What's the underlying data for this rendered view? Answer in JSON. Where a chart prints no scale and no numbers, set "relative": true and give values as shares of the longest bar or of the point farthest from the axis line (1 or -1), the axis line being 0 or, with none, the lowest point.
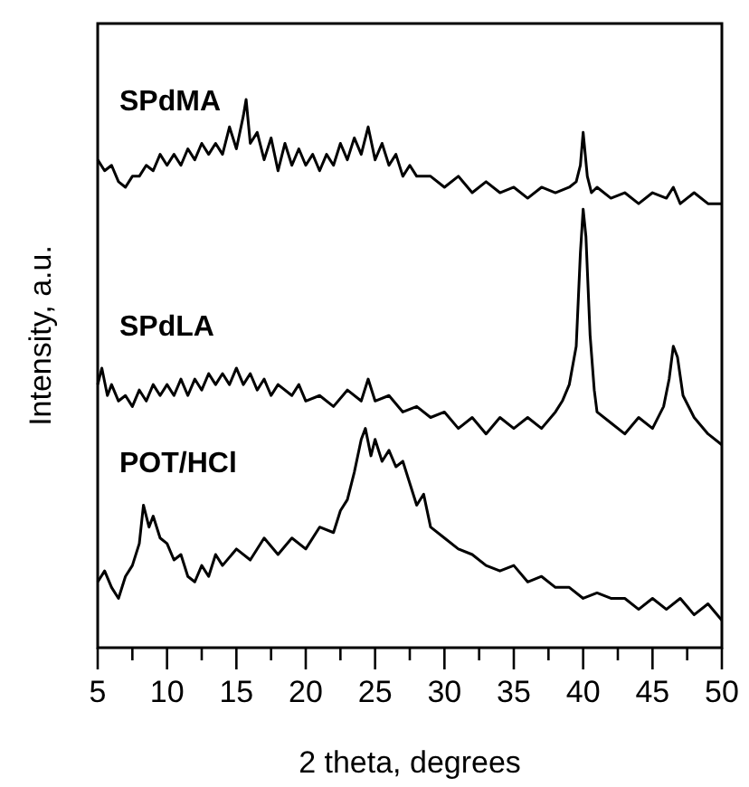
{
  "chart_data": {
    "type": "line",
    "relative": true,
    "xlabel": "2 theta, degrees",
    "ylabel": "Intensity, a.u.",
    "xlim": [
      5,
      50
    ],
    "xticks": [
      5,
      {
        "value": 7.5,
        "label": null
      },
      10,
      {
        "value": 12.5,
        "label": null
      },
      15,
      {
        "value": 17.5,
        "label": null
      },
      20,
      {
        "value": 22.5,
        "label": null
      },
      25,
      {
        "value": 27.5,
        "label": null
      },
      30,
      {
        "value": 32.5,
        "label": null
      },
      35,
      {
        "value": 37.5,
        "label": null
      },
      40,
      {
        "value": 42.5,
        "label": null
      },
      45,
      {
        "value": 47.5,
        "label": null
      },
      50
    ],
    "series": [
      {
        "name": "SPdMA",
        "color": "#000000",
        "x": [
          5,
          5.5,
          6,
          6.5,
          7,
          7.5,
          8,
          8.5,
          9,
          9.5,
          10,
          10.5,
          11,
          11.5,
          12,
          12.5,
          13,
          13.5,
          14,
          14.5,
          15,
          15.5,
          15.7,
          16,
          16.5,
          17,
          17.5,
          18,
          18.5,
          19,
          19.5,
          20,
          20.5,
          21,
          21.5,
          22,
          22.5,
          23,
          23.5,
          24,
          24.5,
          25,
          25.5,
          26,
          26.5,
          27,
          27.5,
          28,
          29,
          30,
          31,
          32,
          33,
          34,
          35,
          36,
          37,
          38,
          39,
          39.5,
          39.8,
          40,
          40.3,
          40.6,
          41,
          42,
          43,
          44,
          45,
          46,
          46.5,
          47,
          48,
          49,
          50
        ],
        "values": [
          0.89,
          0.87,
          0.88,
          0.85,
          0.84,
          0.86,
          0.86,
          0.88,
          0.87,
          0.9,
          0.88,
          0.9,
          0.88,
          0.91,
          0.89,
          0.92,
          0.9,
          0.92,
          0.9,
          0.95,
          0.91,
          0.97,
          1,
          0.92,
          0.94,
          0.89,
          0.93,
          0.87,
          0.92,
          0.88,
          0.91,
          0.88,
          0.9,
          0.87,
          0.9,
          0.88,
          0.92,
          0.89,
          0.93,
          0.9,
          0.95,
          0.89,
          0.92,
          0.88,
          0.9,
          0.86,
          0.88,
          0.86,
          0.86,
          0.84,
          0.86,
          0.83,
          0.85,
          0.83,
          0.84,
          0.82,
          0.84,
          0.83,
          0.84,
          0.85,
          0.88,
          0.94,
          0.86,
          0.83,
          0.84,
          0.82,
          0.83,
          0.81,
          0.83,
          0.82,
          0.84,
          0.81,
          0.83,
          0.81,
          0.81
        ]
      },
      {
        "name": "SPdLA",
        "color": "#000000",
        "x": [
          5,
          5.3,
          5.7,
          6,
          6.5,
          7,
          7.5,
          8,
          8.5,
          9,
          9.5,
          10,
          10.5,
          11,
          11.5,
          12,
          12.5,
          13,
          13.5,
          14,
          14.5,
          15,
          15.5,
          16,
          16.5,
          17,
          17.5,
          18,
          19,
          19.5,
          20,
          21,
          22,
          23,
          24,
          24.5,
          25,
          26,
          27,
          28,
          29,
          30,
          31,
          32,
          33,
          34,
          35,
          36,
          37,
          38,
          38.5,
          39,
          39.5,
          39.8,
          40,
          40.2,
          40.5,
          40.8,
          41,
          42,
          43,
          44,
          45,
          45.8,
          46.2,
          46.5,
          46.8,
          47.2,
          48,
          49,
          50
        ],
        "values": [
          0.48,
          0.51,
          0.46,
          0.48,
          0.45,
          0.46,
          0.44,
          0.47,
          0.45,
          0.48,
          0.46,
          0.48,
          0.46,
          0.49,
          0.46,
          0.49,
          0.47,
          0.5,
          0.48,
          0.5,
          0.48,
          0.51,
          0.48,
          0.5,
          0.47,
          0.49,
          0.46,
          0.48,
          0.46,
          0.48,
          0.45,
          0.46,
          0.44,
          0.47,
          0.45,
          0.49,
          0.45,
          0.46,
          0.43,
          0.44,
          0.42,
          0.43,
          0.4,
          0.42,
          0.39,
          0.42,
          0.4,
          0.42,
          0.4,
          0.43,
          0.45,
          0.48,
          0.55,
          0.72,
          0.8,
          0.75,
          0.57,
          0.47,
          0.43,
          0.41,
          0.39,
          0.42,
          0.4,
          0.44,
          0.49,
          0.55,
          0.53,
          0.46,
          0.42,
          0.39,
          0.37
        ]
      },
      {
        "name": "POT/HCl",
        "color": "#000000",
        "x": [
          5,
          5.5,
          6,
          6.5,
          7,
          7.5,
          8,
          8.3,
          8.7,
          9,
          9.5,
          10,
          10.5,
          11,
          11.5,
          12,
          12.5,
          13,
          13.5,
          14,
          15,
          16,
          17,
          18,
          19,
          20,
          21,
          22,
          22.5,
          23,
          23.5,
          24,
          24.3,
          24.7,
          25,
          25.5,
          26,
          26.5,
          27,
          27.5,
          28,
          28.5,
          29,
          30,
          31,
          32,
          33,
          34,
          35,
          36,
          37,
          38,
          39,
          40,
          41,
          42,
          43,
          44,
          45,
          46,
          47,
          48,
          49,
          50
        ],
        "values": [
          0.12,
          0.14,
          0.11,
          0.09,
          0.13,
          0.15,
          0.19,
          0.26,
          0.22,
          0.24,
          0.2,
          0.19,
          0.16,
          0.17,
          0.13,
          0.12,
          0.15,
          0.13,
          0.17,
          0.15,
          0.18,
          0.16,
          0.2,
          0.17,
          0.2,
          0.18,
          0.22,
          0.21,
          0.25,
          0.27,
          0.32,
          0.38,
          0.4,
          0.35,
          0.38,
          0.34,
          0.36,
          0.33,
          0.34,
          0.3,
          0.26,
          0.28,
          0.22,
          0.2,
          0.18,
          0.17,
          0.15,
          0.14,
          0.15,
          0.12,
          0.13,
          0.11,
          0.11,
          0.09,
          0.1,
          0.09,
          0.09,
          0.07,
          0.09,
          0.07,
          0.09,
          0.06,
          0.08,
          0.05
        ]
      }
    ]
  }
}
